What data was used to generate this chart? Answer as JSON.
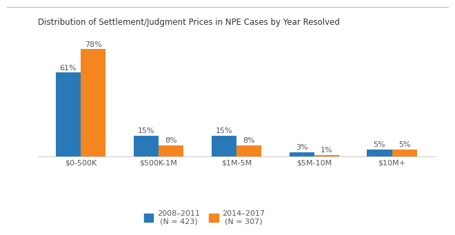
{
  "title": "Distribution of Settlement/Judgment Prices in NPE Cases by Year Resolved",
  "categories": [
    "$0-500K",
    "$500K-1M",
    "$1M-5M",
    "$5M-10M",
    "$10M+"
  ],
  "series_2008": [
    61,
    15,
    15,
    3,
    5
  ],
  "series_2014": [
    78,
    8,
    8,
    1,
    5
  ],
  "color_2008": "#2979B8",
  "color_2014": "#F5851F",
  "legend_2008": "2008–2011\n(N = 423)",
  "legend_2014": "2014–2017\n(N = 307)",
  "bar_width": 0.32,
  "ylim": [
    0,
    90
  ],
  "title_fontsize": 8.5,
  "label_fontsize": 8,
  "tick_fontsize": 8,
  "legend_fontsize": 8,
  "bg_color": "#FFFFFF",
  "top_border_color": "#BBBBBB"
}
